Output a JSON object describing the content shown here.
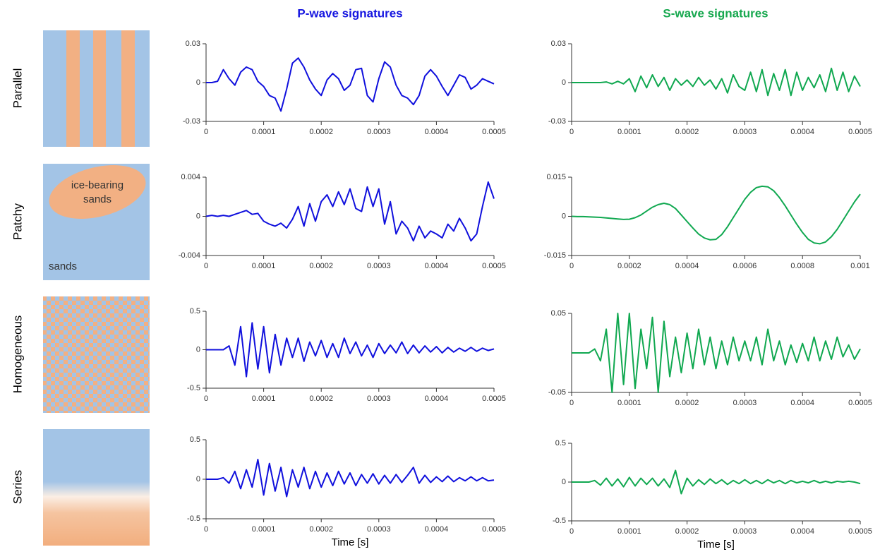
{
  "figure": {
    "columns": [
      "P-wave signatures",
      "S-wave signatures"
    ],
    "rows": [
      "Parallel",
      "Patchy",
      "Homogeneous",
      "Series"
    ],
    "ice_label": [
      "ice-bearing",
      "sands"
    ],
    "sands_label": "sands",
    "column_colors": [
      "#1515e0",
      "#17a84f"
    ]
  },
  "chart_data": [
    {
      "type": "line",
      "color": "#1010dd",
      "xlim": [
        0,
        0.0005
      ],
      "ylim": [
        -0.03,
        0.03
      ],
      "xticks": [
        0,
        0.0001,
        0.0002,
        0.0003,
        0.0004,
        0.0005
      ],
      "yticks": [
        -0.03,
        0,
        0.03
      ],
      "x": [
        0,
        1e-05,
        2e-05,
        3e-05,
        4e-05,
        5e-05,
        6e-05,
        7e-05,
        8e-05,
        9e-05,
        0.0001,
        0.00011,
        0.00012,
        0.00013,
        0.00014,
        0.00015,
        0.00016,
        0.00017,
        0.00018,
        0.00019,
        0.0002,
        0.00021,
        0.00022,
        0.00023,
        0.00024,
        0.00025,
        0.00026,
        0.00027,
        0.00028,
        0.00029,
        0.0003,
        0.00031,
        0.00032,
        0.00033,
        0.00034,
        0.00035,
        0.00036,
        0.00037,
        0.00038,
        0.00039,
        0.0004,
        0.00041,
        0.00042,
        0.00043,
        0.00044,
        0.00045,
        0.00046,
        0.00047,
        0.00048,
        0.00049,
        0.0005
      ],
      "values": [
        0,
        0,
        0.001,
        0.01,
        0.003,
        -0.002,
        0.008,
        0.012,
        0.01,
        0.001,
        -0.003,
        -0.01,
        -0.012,
        -0.022,
        -0.005,
        0.015,
        0.019,
        0.012,
        0.002,
        -0.005,
        -0.01,
        0.002,
        0.007,
        0.003,
        -0.006,
        -0.002,
        0.01,
        0.011,
        -0.01,
        -0.015,
        0.003,
        0.016,
        0.012,
        -0.002,
        -0.01,
        -0.012,
        -0.017,
        -0.01,
        0.005,
        0.01,
        0.005,
        -0.003,
        -0.01,
        -0.002,
        0.006,
        0.004,
        -0.005,
        -0.002,
        0.003,
        0.001,
        -0.001
      ]
    },
    {
      "type": "line",
      "color": "#10a850",
      "xlim": [
        0,
        0.0005
      ],
      "ylim": [
        -0.03,
        0.03
      ],
      "xticks": [
        0,
        0.0001,
        0.0002,
        0.0003,
        0.0004,
        0.0005
      ],
      "yticks": [
        -0.03,
        0,
        0.03
      ],
      "x": [
        0,
        1e-05,
        2e-05,
        3e-05,
        4e-05,
        5e-05,
        6e-05,
        7e-05,
        8e-05,
        9e-05,
        0.0001,
        0.00011,
        0.00012,
        0.00013,
        0.00014,
        0.00015,
        0.00016,
        0.00017,
        0.00018,
        0.00019,
        0.0002,
        0.00021,
        0.00022,
        0.00023,
        0.00024,
        0.00025,
        0.00026,
        0.00027,
        0.00028,
        0.00029,
        0.0003,
        0.00031,
        0.00032,
        0.00033,
        0.00034,
        0.00035,
        0.00036,
        0.00037,
        0.00038,
        0.00039,
        0.0004,
        0.00041,
        0.00042,
        0.00043,
        0.00044,
        0.00045,
        0.00046,
        0.00047,
        0.00048,
        0.00049,
        0.0005
      ],
      "values": [
        0,
        0,
        0,
        0,
        0,
        0,
        0.0005,
        -0.001,
        0.001,
        -0.001,
        0.003,
        -0.007,
        0.005,
        -0.004,
        0.006,
        -0.003,
        0.004,
        -0.006,
        0.003,
        -0.002,
        0.002,
        -0.003,
        0.004,
        -0.002,
        0.002,
        -0.005,
        0.003,
        -0.008,
        0.006,
        -0.003,
        -0.006,
        0.008,
        -0.007,
        0.01,
        -0.01,
        0.007,
        -0.006,
        0.01,
        -0.01,
        0.008,
        -0.006,
        0.004,
        -0.004,
        0.006,
        -0.007,
        0.011,
        -0.006,
        0.008,
        -0.007,
        0.005,
        -0.003
      ]
    },
    {
      "type": "line",
      "color": "#1010dd",
      "xlim": [
        0,
        0.0005
      ],
      "ylim": [
        -0.004,
        0.004
      ],
      "xticks": [
        0,
        0.0001,
        0.0002,
        0.0003,
        0.0004,
        0.0005
      ],
      "yticks": [
        -0.004,
        0,
        0.004
      ],
      "x": [
        0,
        1e-05,
        2e-05,
        3e-05,
        4e-05,
        5e-05,
        6e-05,
        7e-05,
        8e-05,
        9e-05,
        0.0001,
        0.00011,
        0.00012,
        0.00013,
        0.00014,
        0.00015,
        0.00016,
        0.00017,
        0.00018,
        0.00019,
        0.0002,
        0.00021,
        0.00022,
        0.00023,
        0.00024,
        0.00025,
        0.00026,
        0.00027,
        0.00028,
        0.00029,
        0.0003,
        0.00031,
        0.00032,
        0.00033,
        0.00034,
        0.00035,
        0.00036,
        0.00037,
        0.00038,
        0.00039,
        0.0004,
        0.00041,
        0.00042,
        0.00043,
        0.00044,
        0.00045,
        0.00046,
        0.00047,
        0.00048,
        0.00049,
        0.0005
      ],
      "values": [
        0,
        0.0001,
        0,
        0.0001,
        0,
        0.0002,
        0.0004,
        0.0006,
        0.0002,
        0.0003,
        -0.0005,
        -0.0008,
        -0.001,
        -0.0007,
        -0.0012,
        -0.0003,
        0.001,
        -0.001,
        0.0013,
        -0.0005,
        0.0015,
        0.0022,
        0.001,
        0.0025,
        0.0012,
        0.0028,
        0.0008,
        0.0005,
        0.003,
        0.001,
        0.0028,
        -0.0008,
        0.0015,
        -0.0018,
        -0.0005,
        -0.0012,
        -0.0025,
        -0.001,
        -0.0022,
        -0.0015,
        -0.0018,
        -0.0022,
        -0.0008,
        -0.0015,
        -0.0002,
        -0.0012,
        -0.0025,
        -0.0018,
        0.001,
        0.0035,
        0.0018
      ]
    },
    {
      "type": "line",
      "color": "#10a850",
      "xlim": [
        0,
        0.001
      ],
      "ylim": [
        -0.015,
        0.015
      ],
      "xticks": [
        0,
        0.0002,
        0.0004,
        0.0006,
        0.0008,
        0.001
      ],
      "yticks": [
        -0.015,
        0,
        0.015
      ],
      "x": [
        0,
        2e-05,
        4e-05,
        6e-05,
        8e-05,
        0.0001,
        0.00012,
        0.00014,
        0.00016,
        0.00018,
        0.0002,
        0.00022,
        0.00024,
        0.00026,
        0.00028,
        0.0003,
        0.00032,
        0.00034,
        0.00036,
        0.00038,
        0.0004,
        0.00042,
        0.00044,
        0.00046,
        0.00048,
        0.0005,
        0.00052,
        0.00054,
        0.00056,
        0.00058,
        0.0006,
        0.00062,
        0.00064,
        0.00066,
        0.00068,
        0.0007,
        0.00072,
        0.00074,
        0.00076,
        0.00078,
        0.0008,
        0.00082,
        0.00084,
        0.00086,
        0.00088,
        0.0009,
        0.00092,
        0.00094,
        0.00096,
        0.00098,
        0.001
      ],
      "values": [
        0,
        -0.0001,
        -0.0001,
        -0.0002,
        -0.0003,
        -0.0004,
        -0.0006,
        -0.0008,
        -0.001,
        -0.0012,
        -0.0011,
        -0.0005,
        0.0005,
        0.002,
        0.0035,
        0.0045,
        0.005,
        0.0045,
        0.003,
        0.0005,
        -0.002,
        -0.0045,
        -0.0068,
        -0.0083,
        -0.009,
        -0.0088,
        -0.007,
        -0.004,
        -0.0005,
        0.003,
        0.0065,
        0.0092,
        0.011,
        0.0115,
        0.0113,
        0.0098,
        0.0072,
        0.004,
        0.0005,
        -0.003,
        -0.0062,
        -0.0088,
        -0.0102,
        -0.0105,
        -0.0098,
        -0.0078,
        -0.005,
        -0.0015,
        0.002,
        0.0055,
        0.0085
      ]
    },
    {
      "type": "line",
      "color": "#1010dd",
      "xlim": [
        0,
        0.0005
      ],
      "ylim": [
        -0.5,
        0.5
      ],
      "xticks": [
        0,
        0.0001,
        0.0002,
        0.0003,
        0.0004,
        0.0005
      ],
      "yticks": [
        -0.5,
        0,
        0.5
      ],
      "x": [
        0,
        1e-05,
        2e-05,
        3e-05,
        4e-05,
        5e-05,
        6e-05,
        7e-05,
        8e-05,
        9e-05,
        0.0001,
        0.00011,
        0.00012,
        0.00013,
        0.00014,
        0.00015,
        0.00016,
        0.00017,
        0.00018,
        0.00019,
        0.0002,
        0.00021,
        0.00022,
        0.00023,
        0.00024,
        0.00025,
        0.00026,
        0.00027,
        0.00028,
        0.00029,
        0.0003,
        0.00031,
        0.00032,
        0.00033,
        0.00034,
        0.00035,
        0.00036,
        0.00037,
        0.00038,
        0.00039,
        0.0004,
        0.00041,
        0.00042,
        0.00043,
        0.00044,
        0.00045,
        0.00046,
        0.00047,
        0.00048,
        0.00049,
        0.0005
      ],
      "values": [
        0,
        0,
        0,
        0,
        0.05,
        -0.2,
        0.3,
        -0.35,
        0.35,
        -0.25,
        0.3,
        -0.3,
        0.2,
        -0.2,
        0.15,
        -0.1,
        0.15,
        -0.15,
        0.1,
        -0.08,
        0.12,
        -0.1,
        0.08,
        -0.1,
        0.15,
        -0.05,
        0.1,
        -0.08,
        0.06,
        -0.1,
        0.08,
        -0.05,
        0.06,
        -0.04,
        0.1,
        -0.05,
        0.06,
        -0.04,
        0.05,
        -0.03,
        0.04,
        -0.04,
        0.03,
        -0.03,
        0.02,
        -0.02,
        0.03,
        -0.02,
        0.02,
        -0.01,
        0.01
      ]
    },
    {
      "type": "line",
      "color": "#10a850",
      "xlim": [
        0,
        0.0005
      ],
      "ylim": [
        -0.05,
        0.05
      ],
      "xticks": [
        0,
        0.0001,
        0.0002,
        0.0003,
        0.0004,
        0.0005
      ],
      "yticks": [
        -0.05,
        0.05
      ],
      "x": [
        0,
        1e-05,
        2e-05,
        3e-05,
        4e-05,
        5e-05,
        6e-05,
        7e-05,
        8e-05,
        9e-05,
        0.0001,
        0.00011,
        0.00012,
        0.00013,
        0.00014,
        0.00015,
        0.00016,
        0.00017,
        0.00018,
        0.00019,
        0.0002,
        0.00021,
        0.00022,
        0.00023,
        0.00024,
        0.00025,
        0.00026,
        0.00027,
        0.00028,
        0.00029,
        0.0003,
        0.00031,
        0.00032,
        0.00033,
        0.00034,
        0.00035,
        0.00036,
        0.00037,
        0.00038,
        0.00039,
        0.0004,
        0.00041,
        0.00042,
        0.00043,
        0.00044,
        0.00045,
        0.00046,
        0.00047,
        0.00048,
        0.00049,
        0.0005
      ],
      "values": [
        0,
        0,
        0,
        0,
        0.005,
        -0.01,
        0.03,
        -0.05,
        0.05,
        -0.04,
        0.05,
        -0.045,
        0.03,
        -0.02,
        0.045,
        -0.05,
        0.04,
        -0.03,
        0.02,
        -0.025,
        0.025,
        -0.02,
        0.03,
        -0.015,
        0.02,
        -0.02,
        0.015,
        -0.015,
        0.02,
        -0.01,
        0.015,
        -0.01,
        0.02,
        -0.015,
        0.03,
        -0.01,
        0.015,
        -0.015,
        0.01,
        -0.012,
        0.012,
        -0.01,
        0.02,
        -0.01,
        0.015,
        -0.008,
        0.02,
        -0.005,
        0.01,
        -0.008,
        0.005
      ]
    },
    {
      "type": "line",
      "color": "#1010dd",
      "xlim": [
        0,
        0.0005
      ],
      "ylim": [
        -0.5,
        0.5
      ],
      "xticks": [
        0,
        0.0001,
        0.0002,
        0.0003,
        0.0004,
        0.0005
      ],
      "yticks": [
        -0.5,
        0,
        0.5
      ],
      "xlabel": "Time [s]",
      "x": [
        0,
        1e-05,
        2e-05,
        3e-05,
        4e-05,
        5e-05,
        6e-05,
        7e-05,
        8e-05,
        9e-05,
        0.0001,
        0.00011,
        0.00012,
        0.00013,
        0.00014,
        0.00015,
        0.00016,
        0.00017,
        0.00018,
        0.00019,
        0.0002,
        0.00021,
        0.00022,
        0.00023,
        0.00024,
        0.00025,
        0.00026,
        0.00027,
        0.00028,
        0.00029,
        0.0003,
        0.00031,
        0.00032,
        0.00033,
        0.00034,
        0.00035,
        0.00036,
        0.00037,
        0.00038,
        0.00039,
        0.0004,
        0.00041,
        0.00042,
        0.00043,
        0.00044,
        0.00045,
        0.00046,
        0.00047,
        0.00048,
        0.00049,
        0.0005
      ],
      "values": [
        0,
        0,
        0,
        0.02,
        -0.05,
        0.1,
        -0.12,
        0.12,
        -0.1,
        0.25,
        -0.2,
        0.2,
        -0.15,
        0.15,
        -0.22,
        0.12,
        -0.1,
        0.15,
        -0.12,
        0.1,
        -0.1,
        0.08,
        -0.08,
        0.1,
        -0.06,
        0.08,
        -0.08,
        0.06,
        -0.05,
        0.07,
        -0.06,
        0.05,
        -0.05,
        0.06,
        -0.04,
        0.05,
        0.15,
        -0.05,
        0.05,
        -0.04,
        0.03,
        -0.03,
        0.04,
        -0.03,
        0.02,
        -0.02,
        0.03,
        -0.02,
        0.02,
        -0.02,
        -0.01
      ]
    },
    {
      "type": "line",
      "color": "#10a850",
      "xlim": [
        0,
        0.0005
      ],
      "ylim": [
        -0.5,
        0.5
      ],
      "xticks": [
        0,
        0.0001,
        0.0002,
        0.0003,
        0.0004,
        0.0005
      ],
      "yticks": [
        -0.5,
        0,
        0.5
      ],
      "xlabel": "Time [s]",
      "x": [
        0,
        1e-05,
        2e-05,
        3e-05,
        4e-05,
        5e-05,
        6e-05,
        7e-05,
        8e-05,
        9e-05,
        0.0001,
        0.00011,
        0.00012,
        0.00013,
        0.00014,
        0.00015,
        0.00016,
        0.00017,
        0.00018,
        0.00019,
        0.0002,
        0.00021,
        0.00022,
        0.00023,
        0.00024,
        0.00025,
        0.00026,
        0.00027,
        0.00028,
        0.00029,
        0.0003,
        0.00031,
        0.00032,
        0.00033,
        0.00034,
        0.00035,
        0.00036,
        0.00037,
        0.00038,
        0.00039,
        0.0004,
        0.00041,
        0.00042,
        0.00043,
        0.00044,
        0.00045,
        0.00046,
        0.00047,
        0.00048,
        0.00049,
        0.0005
      ],
      "values": [
        0,
        0,
        0,
        0,
        0.02,
        -0.04,
        0.05,
        -0.05,
        0.04,
        -0.06,
        0.06,
        -0.05,
        0.05,
        -0.03,
        0.05,
        -0.05,
        0.04,
        -0.07,
        0.15,
        -0.15,
        0.05,
        -0.05,
        0.03,
        -0.03,
        0.04,
        -0.02,
        0.03,
        -0.03,
        0.02,
        -0.02,
        0.03,
        -0.02,
        0.02,
        -0.02,
        0.03,
        -0.01,
        0.02,
        -0.02,
        0.02,
        -0.01,
        0.01,
        -0.01,
        0.02,
        -0.01,
        0.01,
        -0.01,
        0.01,
        0,
        0.01,
        0,
        -0.02
      ]
    }
  ]
}
